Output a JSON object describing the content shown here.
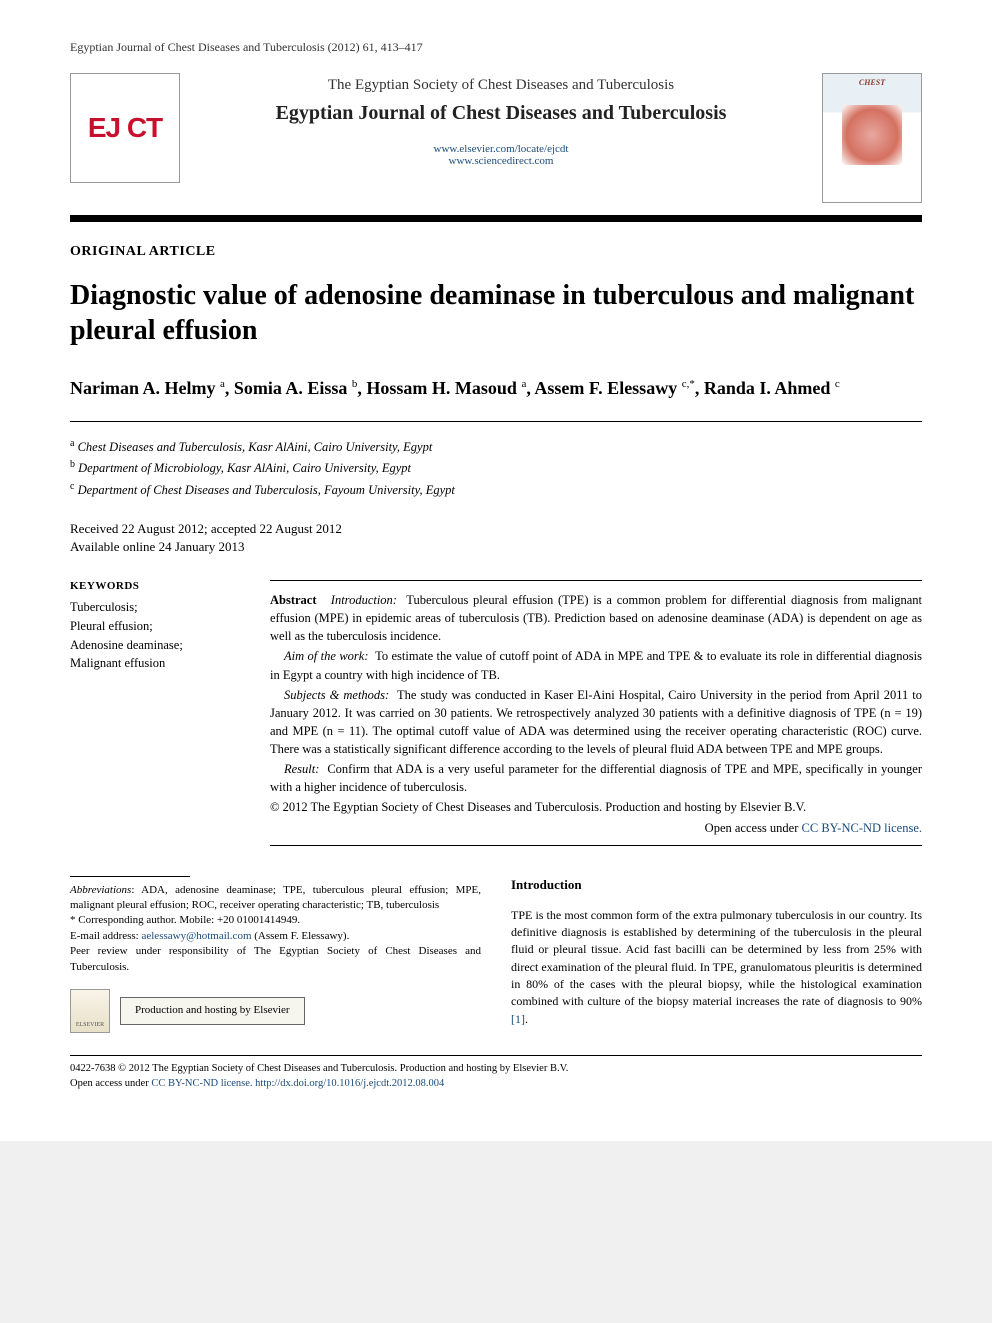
{
  "running_head": "Egyptian Journal of Chest Diseases and Tuberculosis (2012) 61, 413–417",
  "masthead": {
    "logo_letters": "EJ CT",
    "society": "The Egyptian Society of Chest Diseases and Tuberculosis",
    "journal": "Egyptian Journal of Chest Diseases and Tuberculosis",
    "url1": "www.elsevier.com/locate/ejcdt",
    "url2": "www.sciencedirect.com",
    "cover_caption": "CHEST"
  },
  "article_type": "ORIGINAL ARTICLE",
  "title": "Diagnostic value of adenosine deaminase in tuberculous and malignant pleural effusion",
  "authors_html": "Nariman A. Helmy <sup>a</sup>, Somia A. Eissa <sup>b</sup>, Hossam H. Masoud <sup>a</sup>, Assem F. Elessawy <sup>c,*</sup>, Randa I. Ahmed <sup>c</sup>",
  "affiliations": [
    {
      "mark": "a",
      "text": "Chest Diseases and Tuberculosis, Kasr AlAini, Cairo University, Egypt"
    },
    {
      "mark": "b",
      "text": "Department of Microbiology, Kasr AlAini, Cairo University, Egypt"
    },
    {
      "mark": "c",
      "text": "Department of Chest Diseases and Tuberculosis, Fayoum University, Egypt"
    }
  ],
  "dates": {
    "line1": "Received 22 August 2012; accepted 22 August 2012",
    "line2": "Available online 24 January 2013"
  },
  "keywords": {
    "head": "KEYWORDS",
    "items": [
      "Tuberculosis;",
      "Pleural effusion;",
      "Adenosine deaminase;",
      "Malignant effusion"
    ]
  },
  "abstract": {
    "label": "Abstract",
    "intro_head": "Introduction:",
    "intro_text": "Tuberculous pleural effusion (TPE) is a common problem for differential diagnosis from malignant effusion (MPE) in epidemic areas of tuberculosis (TB). Prediction based on adenosine deaminase (ADA) is dependent on age as well as the tuberculosis incidence.",
    "aim_head": "Aim of the work:",
    "aim_text": "To estimate the value of cutoff point of ADA in MPE and TPE & to evaluate its role in differential diagnosis in Egypt a country with high incidence of TB.",
    "methods_head": "Subjects & methods:",
    "methods_text": "The study was conducted in Kaser El-Aini Hospital, Cairo University in the period from April 2011 to January 2012. It was carried on 30 patients. We retrospectively analyzed 30 patients with a definitive diagnosis of TPE (n = 19) and MPE (n = 11). The optimal cutoff value of ADA was determined using the receiver operating characteristic (ROC) curve. There was a statistically significant difference according to the levels of pleural fluid ADA between TPE and MPE groups.",
    "result_head": "Result:",
    "result_text": "Confirm that ADA is a very useful parameter for the differential diagnosis of TPE and MPE, specifically in younger with a higher incidence of tuberculosis.",
    "copyright": "© 2012 The Egyptian Society of Chest Diseases and Tuberculosis. Production and hosting by Elsevier B.V.",
    "license_prefix": "Open access under ",
    "license_link": "CC BY-NC-ND license."
  },
  "footnotes": {
    "abbrev_label": "Abbreviations",
    "abbrev_text": ": ADA, adenosine deaminase; TPE, tuberculous pleural effusion; MPE, malignant pleural effusion; ROC, receiver operating characteristic; TB, tuberculosis",
    "corr_mark": "*",
    "corr_text": "Corresponding author. Mobile: +20 01001414949.",
    "email_label": "E-mail address: ",
    "email": "aelessawy@hotmail.com",
    "email_tail": " (Assem F. Elessawy).",
    "peer": "Peer review under responsibility of The Egyptian Society of Chest Diseases and Tuberculosis.",
    "elsevier_label": "ELSEVIER",
    "prod_host": "Production and hosting by Elsevier"
  },
  "intro": {
    "head": "Introduction",
    "para": "TPE is the most common form of the extra pulmonary tuberculosis in our country. Its definitive diagnosis is established by determining of the tuberculosis in the pleural fluid or pleural tissue. Acid fast bacilli can be determined by less from 25% with direct examination of the pleural fluid. In TPE, granulomatous pleuritis is determined in 80% of the cases with the pleural biopsy, while the histological examination combined with culture of the biopsy material increases the rate of diagnosis to 90% ",
    "ref": "[1]",
    "tail": "."
  },
  "footer": {
    "line1": "0422-7638 © 2012 The Egyptian Society of Chest Diseases and Tuberculosis. Production and hosting by Elsevier B.V.",
    "line2_prefix": "Open access under ",
    "line2_license": "CC BY-NC-ND license.",
    "doi_prefix": " ",
    "doi": "http://dx.doi.org/10.1016/j.ejcdt.2012.08.004"
  },
  "colors": {
    "accent_red": "#c8102e",
    "link_blue": "#1a4b7a",
    "rule_black": "#000000"
  }
}
